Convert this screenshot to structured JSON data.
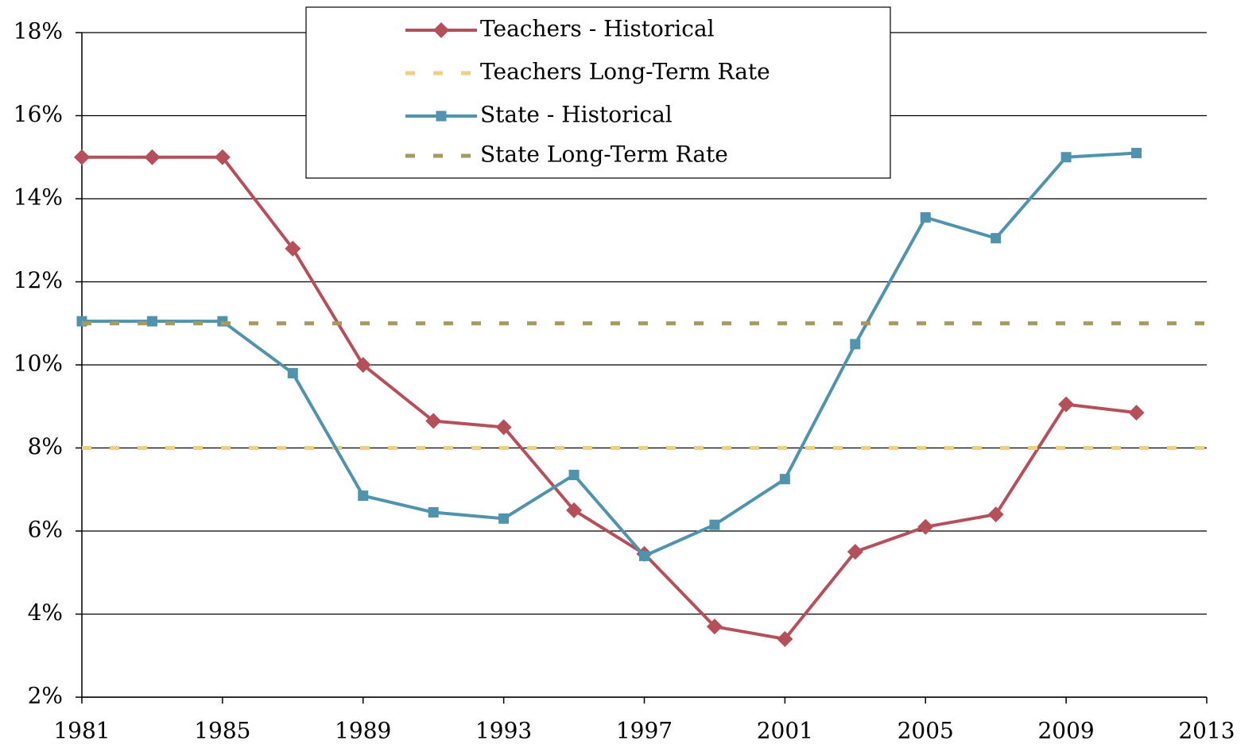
{
  "chart_data": {
    "type": "line",
    "x": [
      1981,
      1983,
      1985,
      1987,
      1989,
      1991,
      1993,
      1995,
      1997,
      1999,
      2001,
      2003,
      2005,
      2007,
      2009,
      2011
    ],
    "series": [
      {
        "name": "Teachers - Historical",
        "color": "#b5505a",
        "marker": "diamond",
        "style": "solid",
        "values": [
          15,
          15,
          15,
          12.8,
          10,
          8.65,
          8.5,
          6.5,
          5.45,
          3.7,
          3.4,
          5.5,
          6.1,
          6.4,
          9.05,
          8.85
        ]
      },
      {
        "name": "Teachers Long-Term Rate",
        "color": "#f0cf86",
        "marker": "none",
        "style": "dashed",
        "x": [
          1981,
          2013
        ],
        "values": [
          8,
          8
        ]
      },
      {
        "name": "State - Historical",
        "color": "#4f93ae",
        "marker": "square",
        "style": "solid",
        "values": [
          11.05,
          11.05,
          11.05,
          9.8,
          6.85,
          6.45,
          6.3,
          7.35,
          5.4,
          6.15,
          7.25,
          10.5,
          13.55,
          13.05,
          15.0,
          15.1
        ]
      },
      {
        "name": "State Long-Term Rate",
        "color": "#a89a5e",
        "marker": "none",
        "style": "dashed",
        "x": [
          1981,
          2013
        ],
        "values": [
          11,
          11
        ]
      }
    ],
    "xlim": [
      1981,
      2013
    ],
    "xticks": [
      1981,
      1985,
      1989,
      1993,
      1997,
      2001,
      2005,
      2009,
      2013
    ],
    "ylim": [
      2,
      18
    ],
    "yticks": [
      {
        "value": 2,
        "label": "2%"
      },
      {
        "value": 4,
        "label": "4%"
      },
      {
        "value": 6,
        "label": "6%"
      },
      {
        "value": 8,
        "label": "8%"
      },
      {
        "value": 10,
        "label": "10%"
      },
      {
        "value": 12,
        "label": "12%"
      },
      {
        "value": 14,
        "label": "14%"
      },
      {
        "value": 16,
        "label": "16%"
      },
      {
        "value": 18,
        "label": "18%"
      }
    ],
    "grid": true,
    "legend": "top"
  }
}
